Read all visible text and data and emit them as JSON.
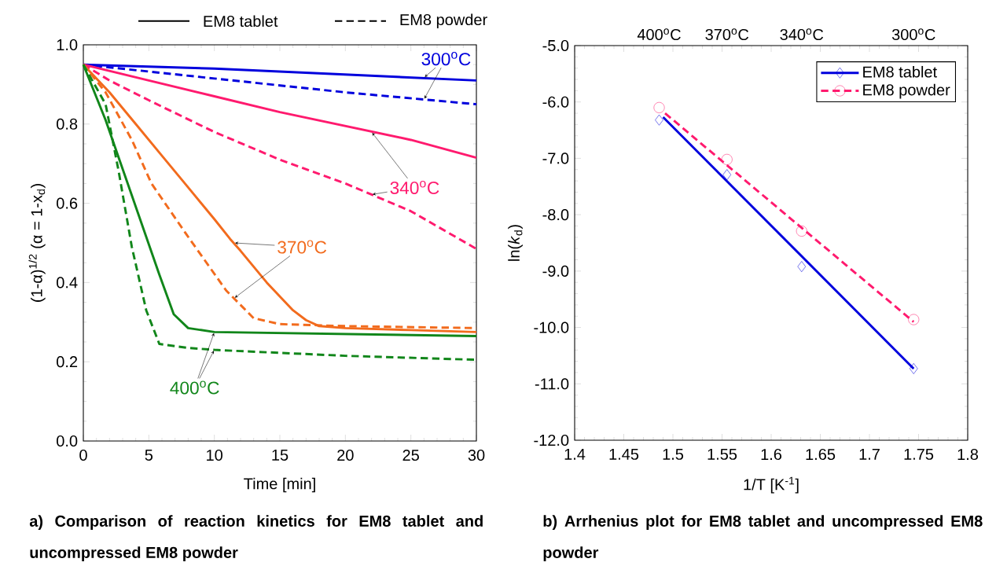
{
  "chart_data": [
    {
      "type": "line",
      "title": "a) Comparison of reaction kinetics for EM8 tablet and uncompressed EM8 powder",
      "xlabel": "Time [min]",
      "ylabel": "(1-α)$^{1/2}$ (α = 1-x$_{d}$)",
      "xlim": [
        0,
        30
      ],
      "ylim": [
        0,
        1.0
      ],
      "xticks": [
        0,
        5,
        10,
        15,
        20,
        25,
        30
      ],
      "yticks": [
        {
          "value": 0,
          "label": "0.0"
        },
        {
          "value": 0.2,
          "label": "0.2"
        },
        {
          "value": 0.4,
          "label": "0.4"
        },
        {
          "value": 0.6,
          "label": "0.6"
        },
        {
          "value": 0.8,
          "label": "0.8"
        },
        {
          "value": 1.0,
          "label": "1.0"
        }
      ],
      "marker": "none",
      "series": [
        {
          "color": "#0000dd",
          "line_style": "solid",
          "x": [
            0,
            10,
            20,
            30
          ],
          "values": [
            0.95,
            0.94,
            0.925,
            0.91
          ]
        },
        {
          "color": "#0000dd",
          "line_style": "dashed",
          "x": [
            0,
            10,
            20,
            30
          ],
          "values": [
            0.95,
            0.915,
            0.88,
            0.85
          ]
        },
        {
          "color": "#ff1a6e",
          "line_style": "solid",
          "x": [
            0,
            5,
            10,
            15,
            20,
            25,
            30
          ],
          "values": [
            0.95,
            0.91,
            0.87,
            0.83,
            0.795,
            0.76,
            0.715
          ]
        },
        {
          "color": "#ff1a6e",
          "line_style": "dashed",
          "x": [
            0,
            2,
            5,
            10,
            15,
            20,
            25,
            30
          ],
          "values": [
            0.95,
            0.91,
            0.86,
            0.78,
            0.71,
            0.65,
            0.58,
            0.485
          ]
        },
        {
          "color": "#f26b1d",
          "line_style": "solid",
          "x": [
            0,
            2,
            4,
            6,
            8,
            10,
            11.2,
            12,
            14,
            16,
            17,
            18,
            20,
            25,
            30
          ],
          "values": [
            0.95,
            0.88,
            0.8,
            0.72,
            0.64,
            0.56,
            0.51,
            0.48,
            0.4,
            0.33,
            0.305,
            0.29,
            0.285,
            0.28,
            0.275
          ]
        },
        {
          "color": "#f26b1d",
          "line_style": "dashed",
          "x": [
            0,
            1.7,
            3.7,
            5.2,
            7.9,
            10.9,
            13,
            15,
            20,
            30
          ],
          "values": [
            0.95,
            0.88,
            0.76,
            0.65,
            0.52,
            0.38,
            0.31,
            0.295,
            0.29,
            0.285
          ]
        },
        {
          "color": "#11861a",
          "line_style": "solid",
          "x": [
            0,
            1.7,
            3.7,
            5.8,
            6.9,
            8,
            10,
            20,
            30
          ],
          "values": [
            0.95,
            0.81,
            0.62,
            0.42,
            0.32,
            0.285,
            0.275,
            0.27,
            0.265
          ]
        },
        {
          "color": "#11861a",
          "line_style": "dashed",
          "x": [
            0,
            1.7,
            2.7,
            3.7,
            4.8,
            5.8,
            8,
            10,
            20,
            30
          ],
          "values": [
            0.95,
            0.85,
            0.68,
            0.49,
            0.33,
            0.245,
            0.235,
            0.23,
            0.215,
            0.205
          ]
        }
      ],
      "annotations": [
        {
          "text": "300$^{o}$C",
          "x": 26,
          "y": 0.917
        },
        {
          "text": "340$^{o}$C",
          "x": 22,
          "y": 0.78
        },
        {
          "text": "370$^{o}$C",
          "x": 11.5,
          "y": 0.5
        },
        {
          "text": "400$^{o}$C",
          "x": 10,
          "y": 0.275
        },
        "EM8 tablet",
        "EM8 powder"
      ]
    },
    {
      "type": "scatter",
      "title": "b) Arrhenius plot for EM8 tablet and uncompressed EM8 powder",
      "xlabel": "1/T [K$^{-1}$]",
      "ylabel": "ln(*k*$_{d}$)",
      "xlim": [
        1.4,
        1.8
      ],
      "ylim": [
        -12,
        -5
      ],
      "xticks": [
        1.4,
        1.45,
        1.5,
        1.55,
        1.6,
        1.65,
        1.7,
        1.75,
        1.8
      ],
      "yticks": [
        {
          "value": -12,
          "label": "-12.0"
        },
        {
          "value": -11,
          "label": "-11.0"
        },
        {
          "value": -10,
          "label": "-10.0"
        },
        {
          "value": -9,
          "label": "-9.0"
        },
        {
          "value": -8,
          "label": "-8.0"
        },
        {
          "value": -7,
          "label": "-7.0"
        },
        {
          "value": -6,
          "label": "-6.0"
        },
        {
          "value": -5,
          "label": "-5.0"
        }
      ],
      "annotations": [
        "400$^{o}$C",
        "370$^{o}$C",
        "340$^{o}$C",
        "300$^{o}$C"
      ],
      "legend": "top right",
      "series": [
        {
          "name": "EM8 tablet",
          "type": "scatter",
          "marker": "diamond",
          "line_style": "solid",
          "color": "#0000dd",
          "x": [
            1.486,
            1.555,
            1.631,
            1.745
          ],
          "values": [
            -6.32,
            -7.29,
            -8.92,
            -10.73
          ]
        },
        {
          "name": "EM8 powder",
          "type": "scatter",
          "marker": "circle",
          "line_style": "dashed",
          "color": "#ff1a6e",
          "x": [
            1.486,
            1.555,
            1.631,
            1.745
          ],
          "values": [
            -6.1,
            -7.02,
            -8.29,
            -9.86
          ]
        },
        {
          "type": "line",
          "line_style": "solid",
          "color": "#0000dd",
          "x": [
            1.49,
            1.745
          ],
          "values": [
            -6.27,
            -10.73
          ]
        },
        {
          "type": "line",
          "line_style": "dashed",
          "color": "#ff1a6e",
          "x": [
            1.492,
            1.745
          ],
          "values": [
            -6.2,
            -9.9
          ]
        }
      ]
    }
  ]
}
